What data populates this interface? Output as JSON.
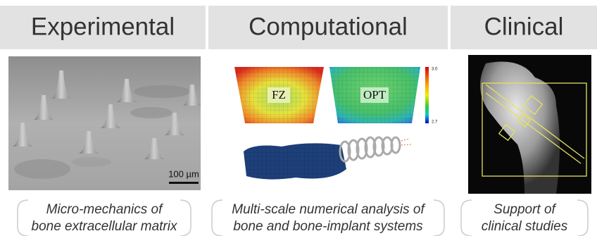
{
  "panels": [
    {
      "title": "Experimental",
      "caption": [
        "Micro-mechanics of",
        "bone extracellular matrix"
      ],
      "scale_bar": "100 µm"
    },
    {
      "title": "Computational",
      "caption": [
        "Multi-scale numerical analysis of",
        "bone and bone-implant systems"
      ],
      "labels": [
        "FZ",
        "OPT"
      ],
      "colorbar": [
        "3.0",
        "2.7"
      ]
    },
    {
      "title": "Clinical",
      "caption": [
        "Support of",
        "clinical studies"
      ]
    }
  ]
}
